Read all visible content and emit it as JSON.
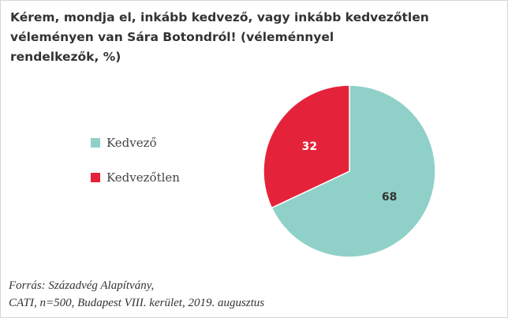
{
  "chart_data": {
    "type": "pie",
    "title": "Kérem, mondja el, inkább kedvező, vagy inkább kedvezőtlen véleményen van Sára Botondról! (véleménnyel rendelkezők, %)",
    "title_lines": [
      "Kérem, mondja el, inkább kedvező, vagy inkább kedvezőtlen",
      "véleményen van Sára Botondról! (véleménnyel",
      "rendelkezők, %)"
    ],
    "categories": [
      "Kedvező",
      "Kedvezőtlen"
    ],
    "values": [
      68,
      32
    ],
    "value_labels": [
      "68",
      "32"
    ],
    "colors": [
      "#8fd1c8",
      "#e4233a"
    ],
    "label_colors": [
      "#333333",
      "#ffffff"
    ],
    "legend_position": "left"
  },
  "source": {
    "line1": "Forrás: Századvég Alapítvány,",
    "line2": "CATI, n=500, Budapest VIII. kerület, 2019. augusztus"
  }
}
